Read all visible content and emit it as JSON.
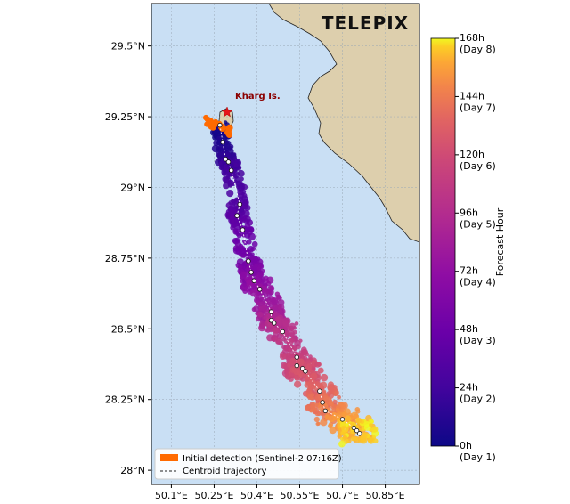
{
  "map": {
    "lon_range": [
      50.03,
      50.97
    ],
    "lat_range": [
      27.95,
      29.65
    ],
    "lon_ticks": [
      "50.1°E",
      "50.25°E",
      "50.4°E",
      "50.55°E",
      "50.7°E",
      "50.85°E"
    ],
    "lat_ticks": [
      "29.5°N",
      "29.25°N",
      "29°N",
      "28.75°N",
      "28.5°N",
      "28.25°N",
      "28°N"
    ],
    "grid": true,
    "colors": {
      "sea": "#c9dff4",
      "land": "#ddcfad",
      "coast": "#222222"
    }
  },
  "logo": {
    "text": "TELEPIX"
  },
  "annotation": {
    "label": "Kharg Is.",
    "marker": "red-star",
    "color": "#8b0000"
  },
  "legend": {
    "items": [
      {
        "label": "Initial detection (Sentinel-2 07:16Z)",
        "swatch": "#ff6a00",
        "kind": "patch"
      },
      {
        "label": "Centroid trajectory",
        "swatch": "#222222",
        "kind": "dashed-line"
      }
    ],
    "placement": "bottom-left"
  },
  "colorbar": {
    "label": "Forecast Hour",
    "colormap": "plasma",
    "range": [
      0,
      168
    ],
    "ticks": [
      {
        "value": 168,
        "line1": "168h",
        "line2": "(Day 8)"
      },
      {
        "value": 144,
        "line1": "144h",
        "line2": "(Day 7)"
      },
      {
        "value": 120,
        "line1": "120h",
        "line2": "(Day 6)"
      },
      {
        "value": 96,
        "line1": "96h",
        "line2": "(Day 5)"
      },
      {
        "value": 72,
        "line1": "72h",
        "line2": "(Day 4)"
      },
      {
        "value": 48,
        "line1": "48h",
        "line2": "(Day 3)"
      },
      {
        "value": 24,
        "line1": "24h",
        "line2": "(Day 2)"
      },
      {
        "value": 0,
        "line1": "0h",
        "line2": "(Day 1)"
      }
    ]
  },
  "chart_data": {
    "type": "scatter",
    "title": "",
    "xlabel": "",
    "ylabel": "",
    "initial_detection": {
      "lon": [
        50.22,
        50.31
      ],
      "lat": [
        29.18,
        29.25
      ]
    },
    "centroids": [
      {
        "hour": 0,
        "lon": 50.27,
        "lat": 29.22
      },
      {
        "hour": 8,
        "lon": 50.28,
        "lat": 29.16
      },
      {
        "hour": 14,
        "lon": 50.29,
        "lat": 29.1
      },
      {
        "hour": 20,
        "lon": 50.3,
        "lat": 29.09
      },
      {
        "hour": 26,
        "lon": 50.31,
        "lat": 29.06
      },
      {
        "hour": 32,
        "lon": 50.34,
        "lat": 28.94
      },
      {
        "hour": 38,
        "lon": 50.33,
        "lat": 28.9
      },
      {
        "hour": 44,
        "lon": 50.35,
        "lat": 28.85
      },
      {
        "hour": 54,
        "lon": 50.37,
        "lat": 28.74
      },
      {
        "hour": 60,
        "lon": 50.38,
        "lat": 28.7
      },
      {
        "hour": 66,
        "lon": 50.39,
        "lat": 28.67
      },
      {
        "hour": 74,
        "lon": 50.41,
        "lat": 28.64
      },
      {
        "hour": 82,
        "lon": 50.45,
        "lat": 28.56
      },
      {
        "hour": 88,
        "lon": 50.45,
        "lat": 28.53
      },
      {
        "hour": 94,
        "lon": 50.46,
        "lat": 28.52
      },
      {
        "hour": 102,
        "lon": 50.49,
        "lat": 28.49
      },
      {
        "hour": 110,
        "lon": 50.54,
        "lat": 28.4
      },
      {
        "hour": 114,
        "lon": 50.54,
        "lat": 28.37
      },
      {
        "hour": 118,
        "lon": 50.56,
        "lat": 28.36
      },
      {
        "hour": 124,
        "lon": 50.57,
        "lat": 28.35
      },
      {
        "hour": 132,
        "lon": 50.62,
        "lat": 28.28
      },
      {
        "hour": 138,
        "lon": 50.63,
        "lat": 28.24
      },
      {
        "hour": 144,
        "lon": 50.64,
        "lat": 28.21
      },
      {
        "hour": 152,
        "lon": 50.7,
        "lat": 28.18
      },
      {
        "hour": 158,
        "lon": 50.74,
        "lat": 28.15
      },
      {
        "hour": 162,
        "lon": 50.75,
        "lat": 28.14
      },
      {
        "hour": 168,
        "lon": 50.76,
        "lat": 28.13
      }
    ]
  }
}
